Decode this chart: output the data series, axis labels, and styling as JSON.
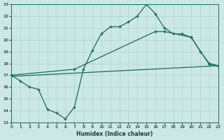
{
  "xlabel": "Humidex (Indice chaleur)",
  "bg_color": "#cce8e5",
  "grid_color": "#a8d4d0",
  "line_color": "#1a6b5a",
  "xlim": [
    0,
    23
  ],
  "ylim": [
    13,
    23
  ],
  "xticks": [
    0,
    1,
    2,
    3,
    4,
    5,
    6,
    7,
    8,
    9,
    10,
    11,
    12,
    13,
    14,
    15,
    16,
    17,
    18,
    19,
    20,
    21,
    22,
    23
  ],
  "yticks": [
    13,
    14,
    15,
    16,
    17,
    18,
    19,
    20,
    21,
    22,
    23
  ],
  "line1_x": [
    0,
    1,
    2,
    3,
    4,
    5,
    6,
    7,
    8,
    9,
    10,
    11,
    12,
    13,
    14,
    15,
    16,
    17,
    18,
    19,
    20,
    21,
    22,
    23
  ],
  "line1_y": [
    17.0,
    16.5,
    16.0,
    15.8,
    14.1,
    13.8,
    13.3,
    14.3,
    17.5,
    19.1,
    20.5,
    21.1,
    21.1,
    21.5,
    22.0,
    23.0,
    22.2,
    21.0,
    20.5,
    20.5,
    20.2,
    19.0,
    18.0,
    17.8
  ],
  "line2_x": [
    0,
    7,
    16,
    17,
    20,
    22,
    23
  ],
  "line2_y": [
    17.0,
    17.5,
    20.7,
    20.7,
    20.2,
    17.9,
    17.8
  ],
  "line3_x": [
    0,
    23
  ],
  "line3_y": [
    16.9,
    17.8
  ]
}
